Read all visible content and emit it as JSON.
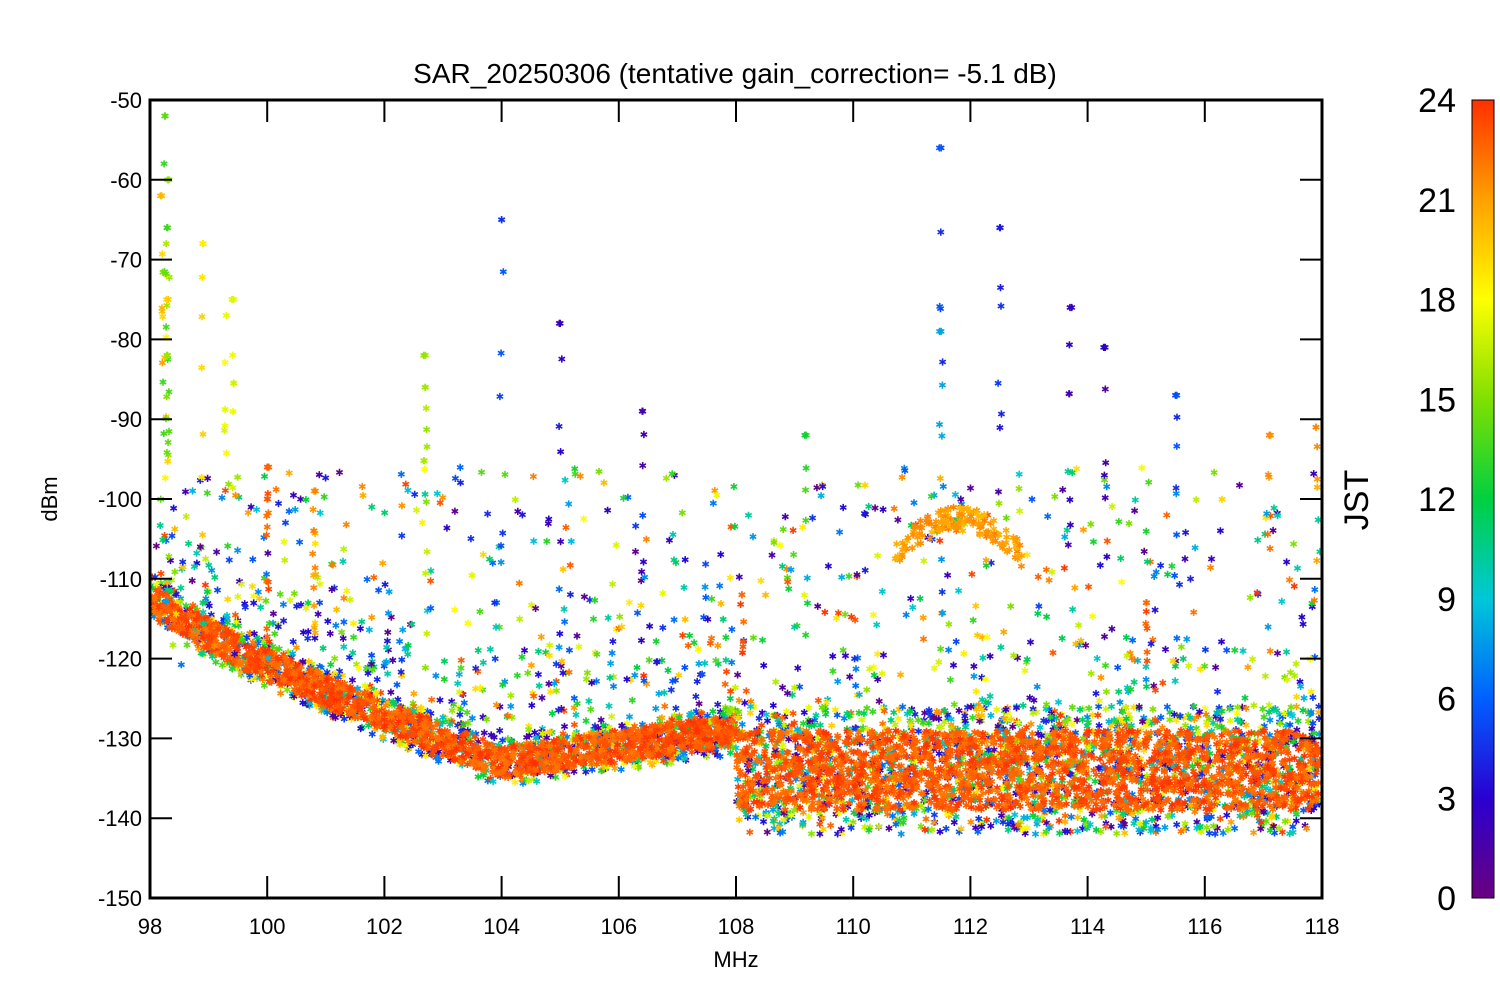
{
  "chart_data": {
    "type": "scatter",
    "title": "SAR_20250306 (tentative gain_correction= -5.1 dB)",
    "xlabel": "MHz",
    "ylabel": "dBm",
    "xlim": [
      98,
      118
    ],
    "ylim": [
      -150,
      -50
    ],
    "xticks": [
      "98",
      "100",
      "102",
      "104",
      "106",
      "108",
      "110",
      "112",
      "114",
      "116",
      "118"
    ],
    "yticks": [
      "-50",
      "-60",
      "-70",
      "-80",
      "-90",
      "-100",
      "-110",
      "-120",
      "-130",
      "-140",
      "-150"
    ],
    "grid": false,
    "marker": "asterisk",
    "colorbar": {
      "label": "JST",
      "range": [
        0,
        24
      ],
      "ticks": [
        "0",
        "3",
        "6",
        "9",
        "12",
        "15",
        "18",
        "21",
        "24"
      ],
      "colormap": "rainbow",
      "colors": [
        "#6a0080",
        "#2a00d0",
        "#0060ff",
        "#00c8d8",
        "#00d040",
        "#80e000",
        "#ffff00",
        "#ffa000",
        "#ff3000"
      ]
    },
    "noise_floor_segments": [
      {
        "x": [
          98,
          108
        ],
        "y_start": -114,
        "y_mid_x": 104,
        "y_min": -135,
        "y_end": -131
      },
      {
        "x": [
          108,
          118
        ],
        "y_range": [
          -142,
          -126
        ]
      }
    ],
    "peaks": [
      {
        "x": 98.25,
        "y": -52,
        "jst": 14
      },
      {
        "x": 98.3,
        "y": -60,
        "jst": 16
      },
      {
        "x": 98.3,
        "y": -66,
        "jst": 14
      },
      {
        "x": 98.28,
        "y": -75,
        "jst": 19
      },
      {
        "x": 98.3,
        "y": -82,
        "jst": 15
      },
      {
        "x": 98.2,
        "y": -62,
        "jst": 20
      },
      {
        "x": 98.9,
        "y": -68,
        "jst": 19
      },
      {
        "x": 99.4,
        "y": -75,
        "jst": 17
      },
      {
        "x": 99.3,
        "y": -77,
        "jst": 18
      },
      {
        "x": 100.0,
        "y": -96,
        "jst": 23
      },
      {
        "x": 100.0,
        "y": -100,
        "jst": 23
      },
      {
        "x": 100.8,
        "y": -99,
        "jst": 21
      },
      {
        "x": 100.8,
        "y": -104,
        "jst": 21
      },
      {
        "x": 102.7,
        "y": -82,
        "jst": 16
      },
      {
        "x": 102.7,
        "y": -86,
        "jst": 16
      },
      {
        "x": 104.0,
        "y": -65,
        "jst": 5
      },
      {
        "x": 105.0,
        "y": -78,
        "jst": 3
      },
      {
        "x": 106.4,
        "y": -89,
        "jst": 2
      },
      {
        "x": 109.2,
        "y": -92,
        "jst": 13
      },
      {
        "x": 111.5,
        "y": -56,
        "jst": 5
      },
      {
        "x": 111.5,
        "y": -79,
        "jst": 8
      },
      {
        "x": 112.5,
        "y": -66,
        "jst": 4
      },
      {
        "x": 113.7,
        "y": -76,
        "jst": 2
      },
      {
        "x": 114.3,
        "y": -81,
        "jst": 2
      },
      {
        "x": 115.5,
        "y": -87,
        "jst": 5
      },
      {
        "x": 117.1,
        "y": -92,
        "jst": 22
      },
      {
        "x": 117.9,
        "y": -91,
        "jst": 21
      },
      {
        "x": 115.0,
        "y": -113,
        "jst": 23
      },
      {
        "x": 108.1,
        "y": -112,
        "jst": 23
      }
    ]
  }
}
